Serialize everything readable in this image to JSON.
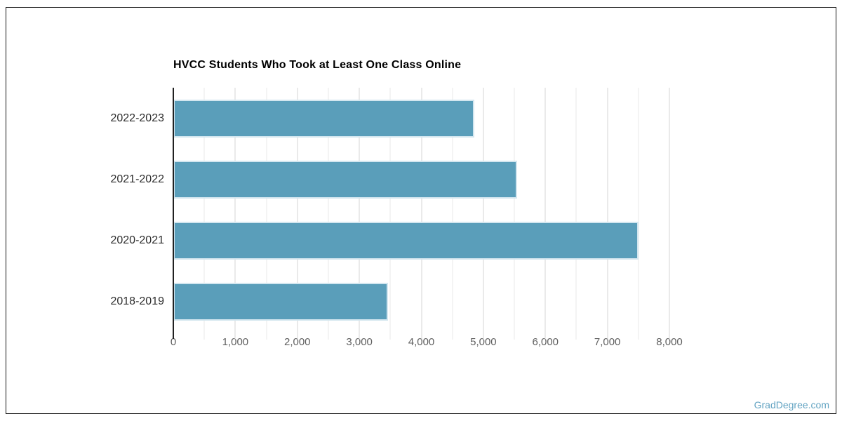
{
  "chart_data": {
    "type": "bar",
    "orientation": "horizontal",
    "title": "HVCC Students Who Took at Least One Class Online",
    "categories": [
      "2022-2023",
      "2021-2022",
      "2020-2021",
      "2018-2019"
    ],
    "values": [
      4850,
      5550,
      7500,
      3460
    ],
    "xlabel": "",
    "ylabel": "",
    "xlim": [
      0,
      8000
    ],
    "x_ticks": [
      0,
      1000,
      2000,
      3000,
      4000,
      5000,
      6000,
      7000,
      8000
    ],
    "x_tick_labels": [
      "0",
      "1,000",
      "2,000",
      "3,000",
      "4,000",
      "5,000",
      "6,000",
      "7,000",
      "8,000"
    ],
    "minor_tick_interval": 500,
    "grid": true,
    "legend": false,
    "data_labels": false,
    "bar_color": "#5A9EBA",
    "bar_border_color": "#D3E6EF",
    "watermark": "GradDegree.com",
    "watermark_color": "#62A3C2"
  }
}
